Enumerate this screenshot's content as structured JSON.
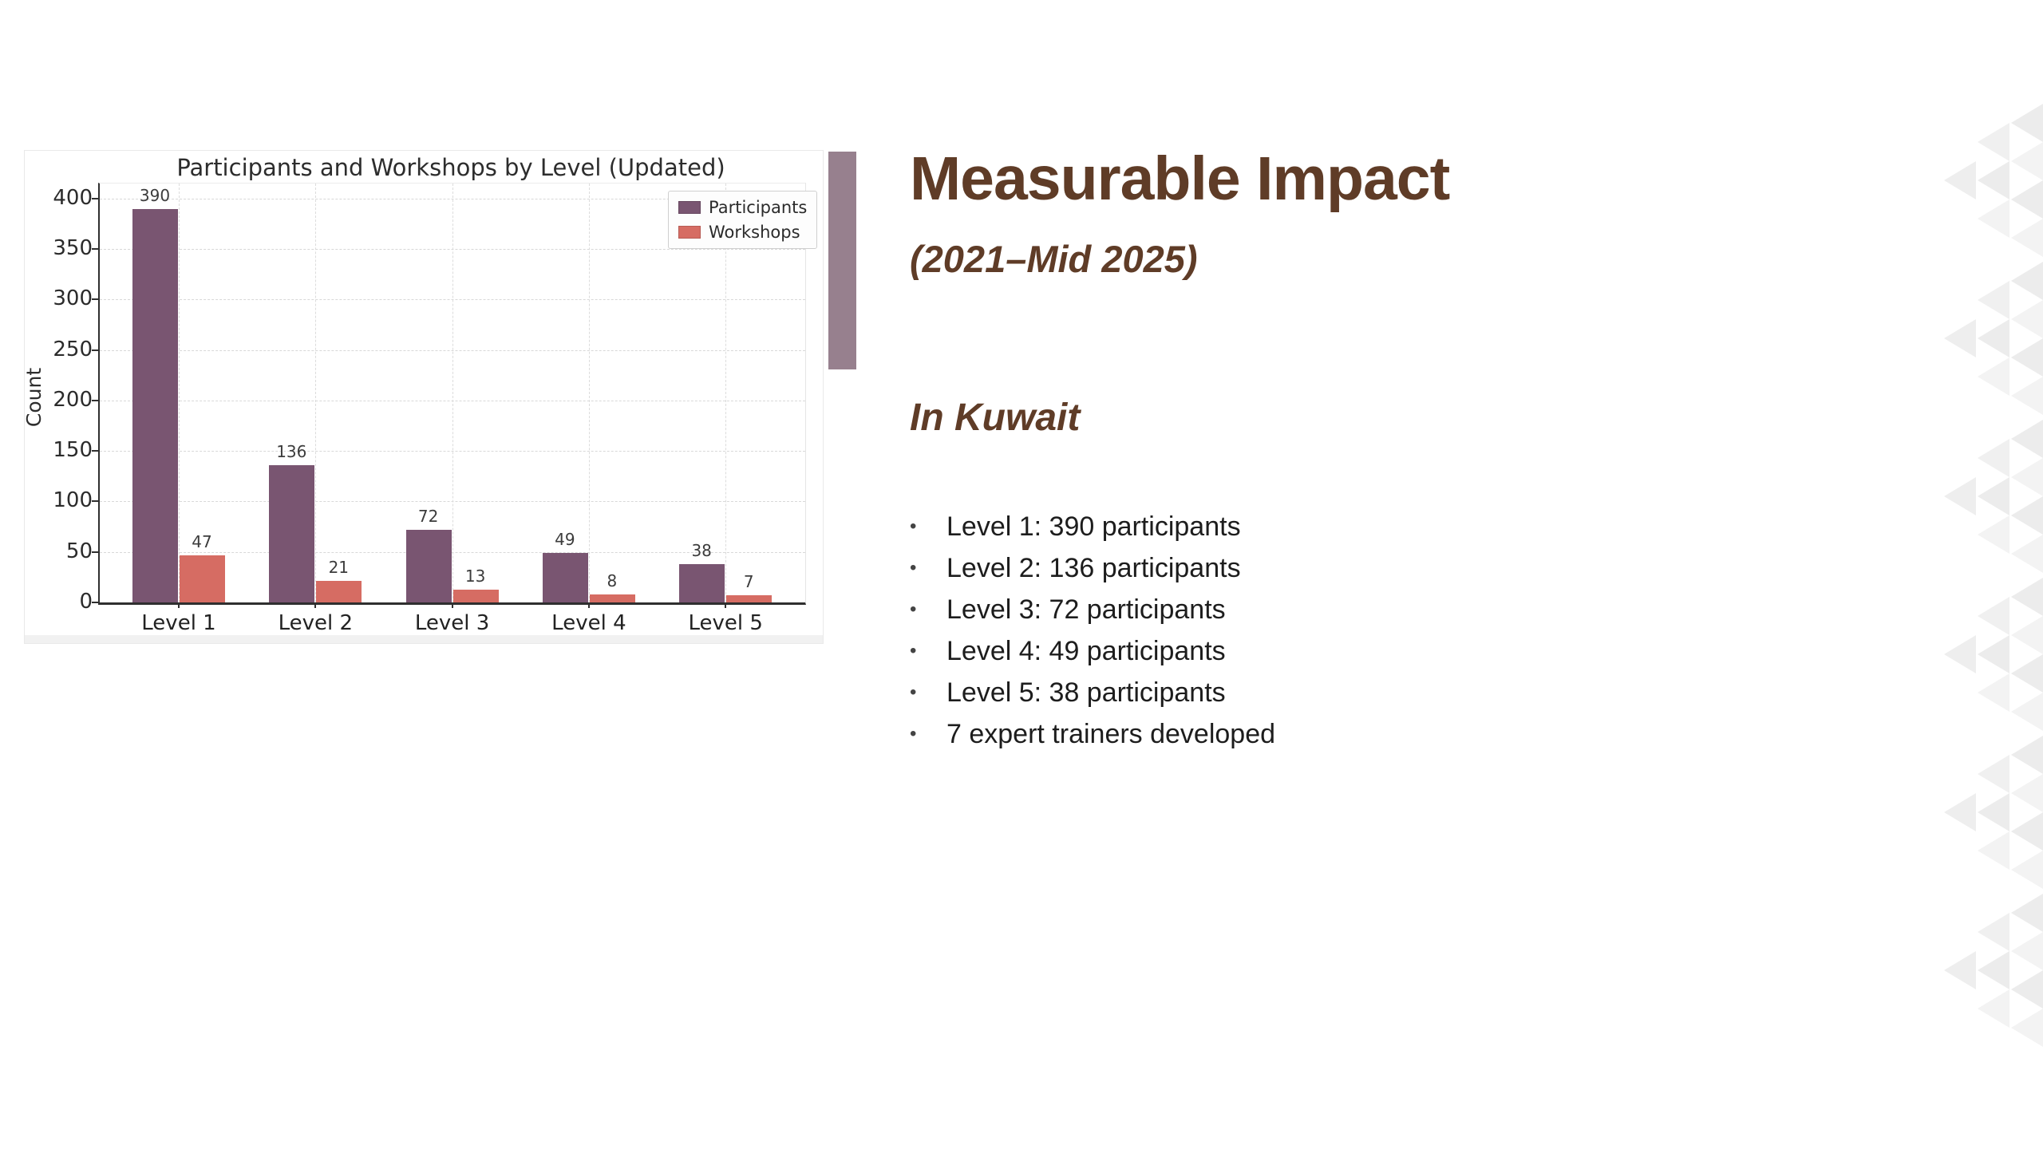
{
  "slide": {
    "title": "Measurable Impact",
    "subtitle": "(2021–Mid 2025)",
    "section_heading": "In Kuwait",
    "bullet_char": "•",
    "bullets": [
      "Level 1: 390 participants",
      "Level 2: 136 participants",
      "Level 3: 72 participants",
      "Level 4: 49 participants",
      "Level 5: 38 participants",
      "7 expert trainers developed"
    ],
    "colors": {
      "heading_brown": "#5f3c27",
      "accent_bar_mauve": "#97808e",
      "body_text": "#1d1d1d",
      "decor_triangle_gray": "#ececec"
    }
  },
  "chart_data": {
    "type": "bar",
    "title": "Participants and Workshops by Level (Updated)",
    "categories": [
      "Level 1",
      "Level 2",
      "Level 3",
      "Level 4",
      "Level 5"
    ],
    "series": [
      {
        "name": "Participants",
        "color": "#795571",
        "values": [
          390,
          136,
          72,
          49,
          38
        ]
      },
      {
        "name": "Workshops",
        "color": "#d66c63",
        "values": [
          47,
          21,
          13,
          8,
          7
        ]
      }
    ],
    "xlabel": "",
    "ylabel": "Count",
    "ylim": [
      0,
      415
    ],
    "yticks": [
      0,
      50,
      100,
      150,
      200,
      250,
      300,
      350,
      400
    ],
    "grid": true,
    "legend_position": "upper right"
  }
}
